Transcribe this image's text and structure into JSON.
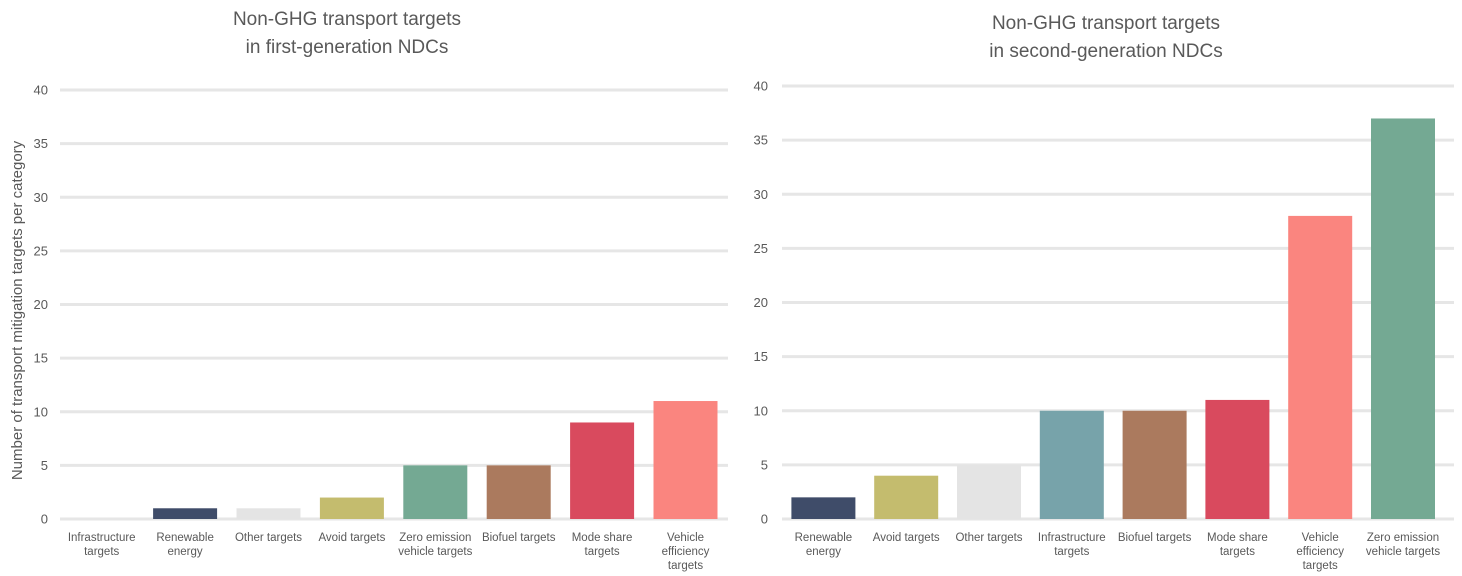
{
  "chart_data": [
    {
      "type": "bar",
      "title": [
        "Non-GHG transport targets",
        "in first-generation NDCs"
      ],
      "ylabel": "Number of transport mitigation targets per category",
      "ylim": [
        0,
        40
      ],
      "yticks": [
        0,
        5,
        10,
        15,
        20,
        25,
        30,
        35,
        40
      ],
      "grid": true,
      "categories": [
        [
          "Infrastructure",
          "targets"
        ],
        [
          "Renewable",
          "energy"
        ],
        [
          "Other targets"
        ],
        [
          "Avoid targets"
        ],
        [
          "Zero emission",
          "vehicle targets"
        ],
        [
          "Biofuel targets"
        ],
        [
          "Mode share",
          "targets"
        ],
        [
          "Vehicle",
          "efficiency",
          "targets"
        ]
      ],
      "values": [
        0,
        1,
        1,
        2,
        5,
        5,
        9,
        11
      ],
      "colors": [
        "#77a3aa",
        "#3f4c69",
        "#e4e4e4",
        "#c4bc6e",
        "#74a993",
        "#ab7a5e",
        "#d94a5e",
        "#fa857f"
      ]
    },
    {
      "type": "bar",
      "title": [
        "Non-GHG transport targets",
        "in second-generation NDCs"
      ],
      "ylabel": "",
      "ylim": [
        0,
        40
      ],
      "yticks": [
        0,
        5,
        10,
        15,
        20,
        25,
        30,
        35,
        40
      ],
      "grid": true,
      "categories": [
        [
          "Renewable",
          "energy"
        ],
        [
          "Avoid targets"
        ],
        [
          "Other targets"
        ],
        [
          "Infrastructure",
          "targets"
        ],
        [
          "Biofuel targets"
        ],
        [
          "Mode share",
          "targets"
        ],
        [
          "Vehicle",
          "efficiency",
          "targets"
        ],
        [
          "Zero emission",
          "vehicle targets"
        ]
      ],
      "values": [
        2,
        4,
        5,
        10,
        10,
        11,
        28,
        37
      ],
      "colors": [
        "#3f4c69",
        "#c4bc6e",
        "#e4e4e4",
        "#77a3aa",
        "#ab7a5e",
        "#d94a5e",
        "#fa857f",
        "#74a993"
      ]
    }
  ]
}
